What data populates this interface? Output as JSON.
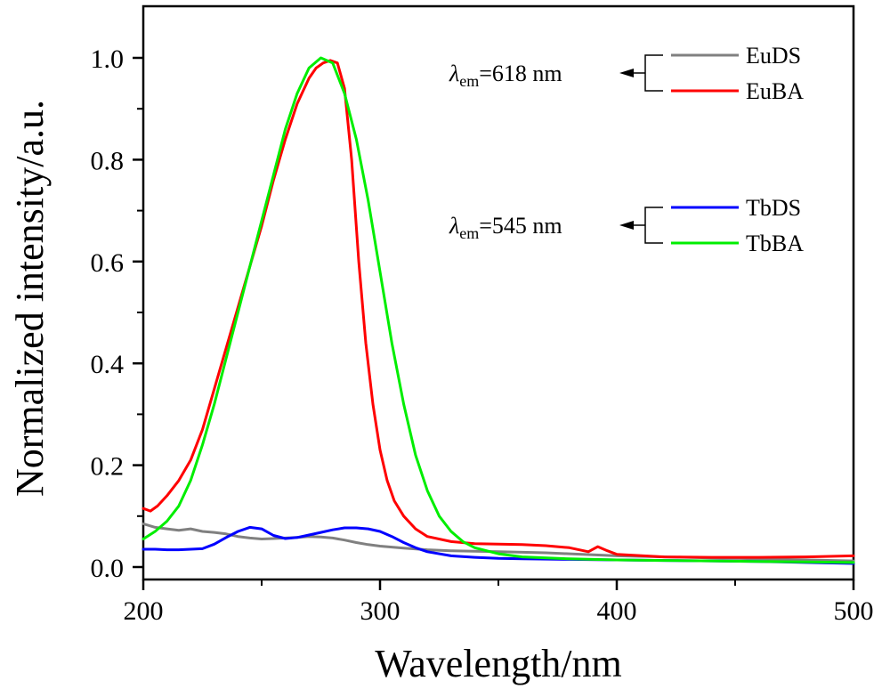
{
  "chart_data": {
    "type": "line",
    "title": "",
    "xlabel": "Wavelength/nm",
    "ylabel": "Normalized intensity/a.u.",
    "xlim": [
      200,
      500
    ],
    "ylim": [
      -0.025,
      1.1
    ],
    "x_ticks": [
      200,
      300,
      400,
      500
    ],
    "x_tick_labels": [
      "200",
      "300",
      "400",
      "500"
    ],
    "x_minor_ticks": [
      250,
      350,
      450
    ],
    "y_ticks": [
      0.0,
      0.2,
      0.4,
      0.6,
      0.8,
      1.0
    ],
    "y_tick_labels": [
      "0.0",
      "0.2",
      "0.4",
      "0.6",
      "0.8",
      "1.0"
    ],
    "y_minor_ticks": [
      0.1,
      0.3,
      0.5,
      0.7,
      0.9
    ],
    "grid": false,
    "legend_position": "top-right",
    "legend_groups": [
      {
        "annotation_symbol": "λ",
        "annotation_sub": "em",
        "annotation_value": "=618 nm",
        "entries": [
          "EuDS",
          "EuBA"
        ]
      },
      {
        "annotation_symbol": "λ",
        "annotation_sub": "em",
        "annotation_value": "=545 nm",
        "entries": [
          "TbDS",
          "TbBA"
        ]
      }
    ],
    "series": [
      {
        "name": "EuDS",
        "color": "#808080",
        "x": [
          200,
          205,
          210,
          215,
          220,
          225,
          230,
          235,
          240,
          245,
          250,
          255,
          260,
          265,
          270,
          275,
          280,
          285,
          290,
          295,
          300,
          310,
          320,
          330,
          340,
          350,
          360,
          370,
          380,
          390,
          400,
          420,
          440,
          460,
          480,
          500
        ],
        "y": [
          0.085,
          0.078,
          0.075,
          0.072,
          0.075,
          0.07,
          0.068,
          0.065,
          0.06,
          0.057,
          0.055,
          0.056,
          0.057,
          0.058,
          0.06,
          0.059,
          0.057,
          0.053,
          0.048,
          0.044,
          0.041,
          0.037,
          0.034,
          0.032,
          0.031,
          0.03,
          0.029,
          0.028,
          0.026,
          0.024,
          0.022,
          0.02,
          0.018,
          0.016,
          0.014,
          0.012
        ]
      },
      {
        "name": "EuBA",
        "color": "#ff0000",
        "x": [
          200,
          203,
          206,
          210,
          215,
          220,
          225,
          230,
          235,
          240,
          245,
          250,
          255,
          260,
          265,
          270,
          273,
          276,
          279,
          282,
          285,
          288,
          291,
          294,
          297,
          300,
          303,
          306,
          310,
          315,
          320,
          330,
          340,
          350,
          360,
          370,
          380,
          388,
          392,
          396,
          400,
          420,
          440,
          460,
          480,
          500
        ],
        "y": [
          0.115,
          0.11,
          0.12,
          0.14,
          0.17,
          0.21,
          0.27,
          0.35,
          0.43,
          0.51,
          0.59,
          0.67,
          0.76,
          0.84,
          0.91,
          0.96,
          0.98,
          0.99,
          0.995,
          0.99,
          0.94,
          0.8,
          0.6,
          0.44,
          0.32,
          0.23,
          0.17,
          0.13,
          0.1,
          0.075,
          0.06,
          0.05,
          0.046,
          0.045,
          0.044,
          0.042,
          0.038,
          0.03,
          0.04,
          0.032,
          0.025,
          0.02,
          0.019,
          0.019,
          0.02,
          0.022
        ]
      },
      {
        "name": "TbDS",
        "color": "#0000ff",
        "x": [
          200,
          205,
          210,
          215,
          220,
          225,
          230,
          235,
          240,
          245,
          250,
          255,
          260,
          265,
          270,
          275,
          280,
          285,
          290,
          295,
          300,
          305,
          310,
          315,
          320,
          330,
          340,
          350,
          360,
          380,
          400,
          420,
          440,
          460,
          480,
          500
        ],
        "y": [
          0.035,
          0.035,
          0.034,
          0.034,
          0.035,
          0.036,
          0.045,
          0.058,
          0.07,
          0.078,
          0.075,
          0.062,
          0.056,
          0.058,
          0.063,
          0.068,
          0.073,
          0.077,
          0.077,
          0.075,
          0.07,
          0.06,
          0.048,
          0.038,
          0.03,
          0.022,
          0.019,
          0.017,
          0.016,
          0.015,
          0.014,
          0.013,
          0.012,
          0.011,
          0.009,
          0.007
        ]
      },
      {
        "name": "TbBA",
        "color": "#00ee00",
        "x": [
          200,
          205,
          210,
          215,
          220,
          225,
          230,
          235,
          240,
          245,
          250,
          255,
          260,
          265,
          270,
          275,
          280,
          285,
          290,
          295,
          300,
          305,
          310,
          315,
          320,
          325,
          330,
          335,
          340,
          350,
          360,
          380,
          400,
          420,
          440,
          460,
          480,
          500
        ],
        "y": [
          0.055,
          0.07,
          0.09,
          0.12,
          0.17,
          0.24,
          0.32,
          0.41,
          0.5,
          0.59,
          0.68,
          0.77,
          0.86,
          0.93,
          0.98,
          1.0,
          0.99,
          0.93,
          0.84,
          0.72,
          0.58,
          0.44,
          0.32,
          0.22,
          0.15,
          0.1,
          0.07,
          0.05,
          0.038,
          0.026,
          0.02,
          0.016,
          0.014,
          0.013,
          0.012,
          0.011,
          0.01,
          0.009
        ]
      }
    ]
  }
}
